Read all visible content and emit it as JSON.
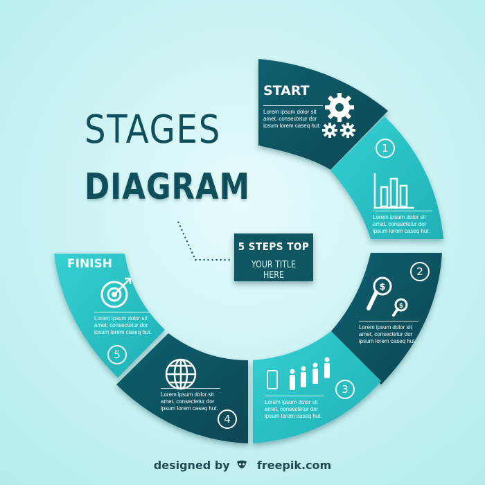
{
  "title": {
    "line1": "STAGES",
    "line2": "DIAGRAM"
  },
  "center": {
    "line1": "5 STEPS TOP",
    "line2": "YOUR TITLE HERE"
  },
  "colors": {
    "dark": "#0f5663",
    "light": "#27c3c5",
    "background": "#c8f2f3"
  },
  "segments": [
    {
      "label": "START",
      "text": "Lorem ipsum dolor sit amet, consectetur dor ipsum lorem caseq hut.",
      "icon": "gears-icon",
      "shade": "dark"
    },
    {
      "number": "1",
      "text": "Lorem ipsum dolor sit amet, consectetur dor ipsum lorem caseq hut.",
      "icon": "bar-chart-icon",
      "shade": "light"
    },
    {
      "number": "2",
      "text": "Lorem ipsum dolor sit amet, consectetur dor ipsum lorem caseq hut.",
      "icon": "money-search-icon",
      "shade": "dark"
    },
    {
      "number": "3",
      "text": "Lorem ipsum dolor sit amet, consectetur dor ipsum lorem caseq hut.",
      "icon": "people-mobile-icon",
      "shade": "light"
    },
    {
      "number": "4",
      "text": "Lorem ipsum dolor sit amet, consectetur dor ipsum lorem caseq hut.",
      "icon": "globe-icon",
      "shade": "dark"
    },
    {
      "label": "FINISH",
      "number": "5",
      "text": "Lorem ipsum dolor sit amet, consectetur dor ipsum lorem caseq hut.",
      "icon": "target-icon",
      "shade": "light"
    }
  ],
  "footer": {
    "prefix": "designed by",
    "brand": "freepik.com"
  }
}
